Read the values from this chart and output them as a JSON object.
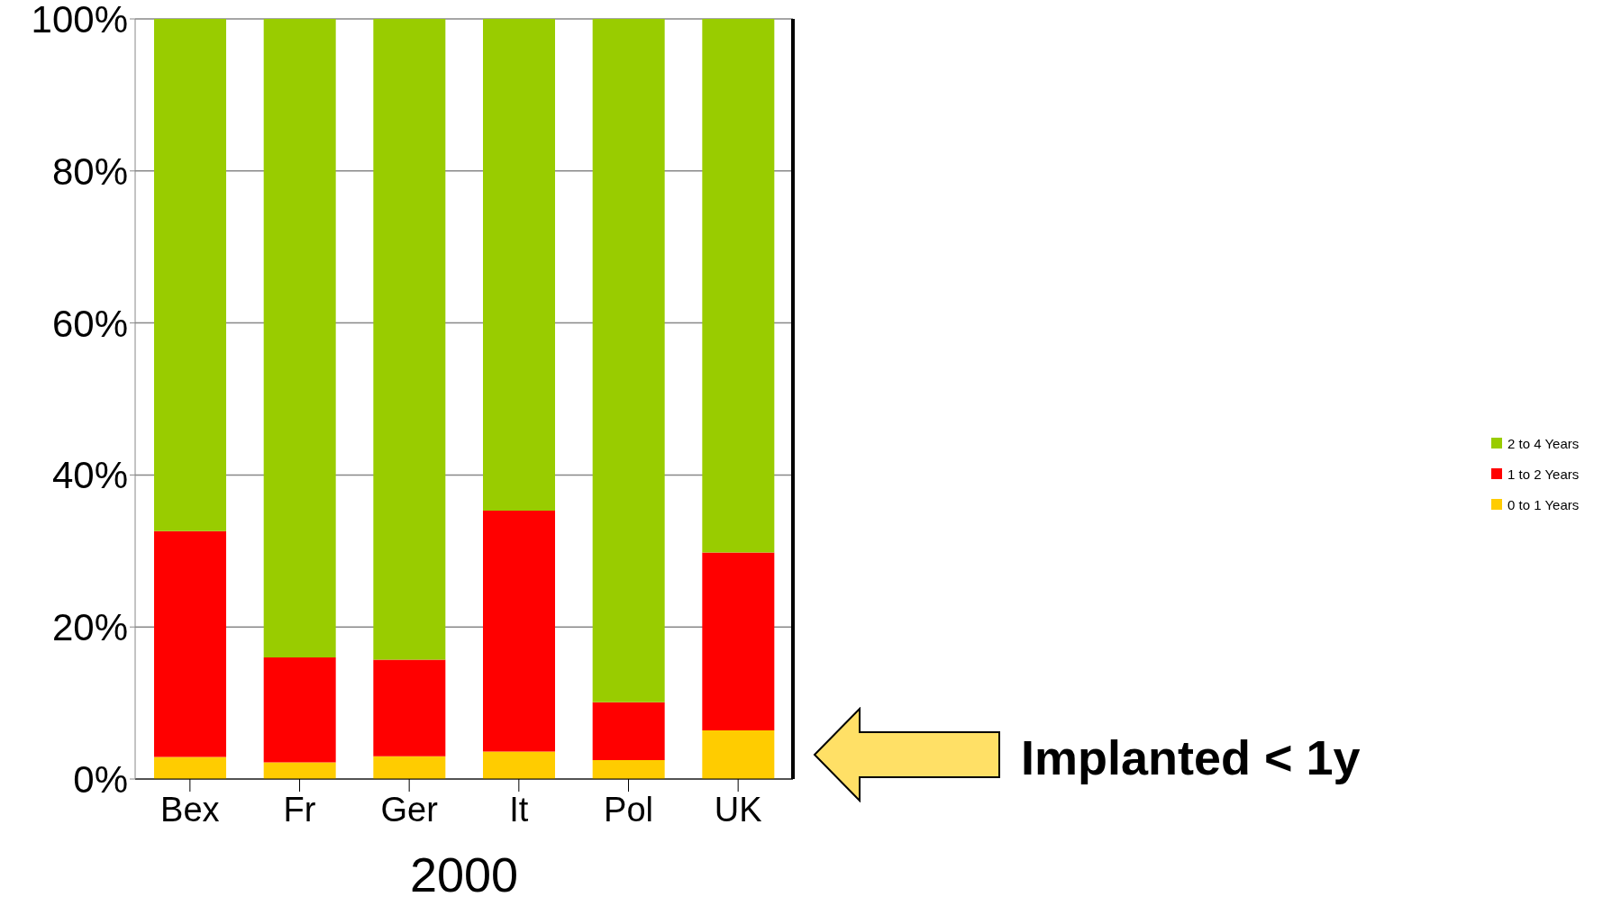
{
  "chart_data": {
    "type": "bar",
    "stacked": true,
    "categories": [
      "Bex",
      "Fr",
      "Ger",
      "It",
      "Pol",
      "UK"
    ],
    "xlabel": "2000",
    "series": [
      {
        "name": "0 to 1 Years",
        "color": "#ffcc00",
        "values": [
          2.9,
          2.2,
          3.0,
          3.6,
          2.5,
          6.4
        ]
      },
      {
        "name": "1 to 2 Years",
        "color": "#ff0000",
        "values": [
          29.7,
          13.8,
          12.7,
          31.7,
          7.6,
          23.4
        ]
      },
      {
        "name": "2 to 4 Years",
        "color": "#99cc00",
        "values": [
          67.4,
          84.0,
          84.3,
          64.7,
          89.9,
          70.2
        ]
      }
    ],
    "ylim": [
      0,
      100
    ],
    "yticks": [
      {
        "value": 0,
        "label": "0%"
      },
      {
        "value": 20,
        "label": "20%"
      },
      {
        "value": 40,
        "label": "40%"
      },
      {
        "value": 60,
        "label": "60%"
      },
      {
        "value": 80,
        "label": "80%"
      },
      {
        "value": 100,
        "label": "100%"
      }
    ],
    "grid": "y",
    "legend": "right",
    "annotations": [
      "Implanted < 1y"
    ]
  }
}
